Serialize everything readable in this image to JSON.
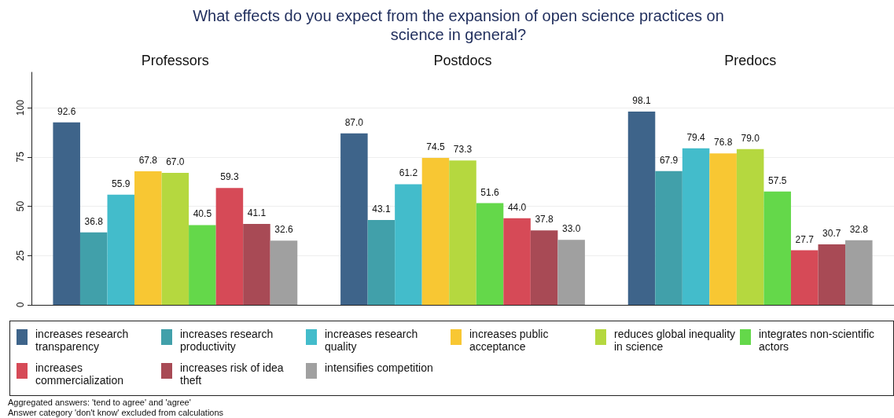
{
  "chart_data": {
    "type": "bar",
    "title": "What effects do you expect from the expansion of open science practices on science in general?",
    "categories": [
      "Professors",
      "Postdocs",
      "Predocs"
    ],
    "ylim": [
      0,
      118
    ],
    "yticks": [
      0,
      25,
      50,
      75,
      100
    ],
    "grid": "y",
    "legend": "bottom",
    "annotations": [
      "Aggregated answers: 'tend to agree' and 'agree'",
      "Answer category 'don't know' excluded from calculations"
    ],
    "series": [
      {
        "name": "increases research transparency",
        "color": "#3e648a",
        "values": [
          92.6,
          87.0,
          98.1
        ],
        "value_labels": [
          "92.6",
          "87.0",
          "98.1"
        ]
      },
      {
        "name": "increases research productivity",
        "color": "#41a0aa",
        "values": [
          36.8,
          43.1,
          67.9
        ],
        "value_labels": [
          "36.8",
          "43.1",
          "67.9"
        ]
      },
      {
        "name": "increases research quality",
        "color": "#43bccb",
        "values": [
          55.9,
          61.2,
          79.4
        ],
        "value_labels": [
          "55.9",
          "61.2",
          "79.4"
        ]
      },
      {
        "name": "increases public acceptance",
        "color": "#f8c733",
        "values": [
          67.8,
          74.5,
          76.8
        ],
        "value_labels": [
          "67.8",
          "74.5",
          "76.8"
        ]
      },
      {
        "name": "reduces global inequality in science",
        "color": "#b5d83f",
        "values": [
          67.0,
          73.3,
          79.0
        ],
        "value_labels": [
          "67.0",
          "73.3",
          "79.0"
        ]
      },
      {
        "name": "integrates non-scientific actors",
        "color": "#64d84a",
        "values": [
          40.5,
          51.6,
          57.5
        ],
        "value_labels": [
          "40.5",
          "51.6",
          "57.5"
        ]
      },
      {
        "name": "increases commercialization",
        "color": "#d64a57",
        "values": [
          59.3,
          44.0,
          27.7
        ],
        "value_labels": [
          "59.3",
          "44.0",
          "27.7"
        ]
      },
      {
        "name": "increases risk of idea theft",
        "color": "#a84a55",
        "values": [
          41.1,
          37.8,
          30.7
        ],
        "value_labels": [
          "41.1",
          "37.8",
          "30.7"
        ]
      },
      {
        "name": "intensifies competition",
        "color": "#a0a0a0",
        "values": [
          32.6,
          33.0,
          32.8
        ],
        "value_labels": [
          "32.6",
          "33.0",
          "32.8"
        ]
      }
    ]
  }
}
